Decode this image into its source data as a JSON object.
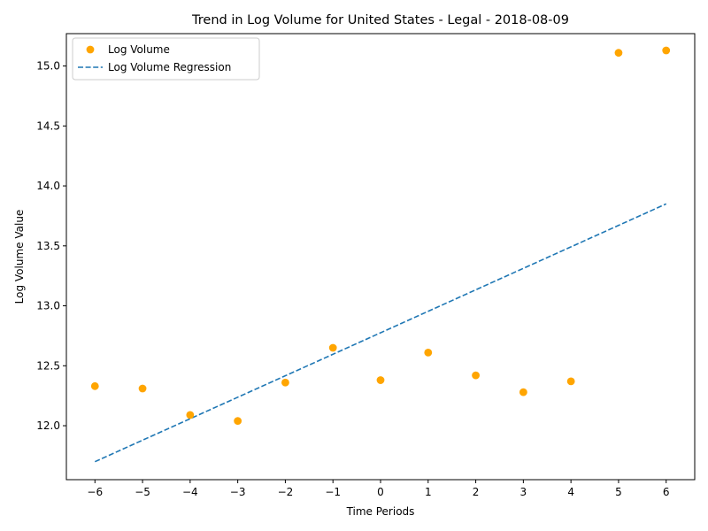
{
  "chart_data": {
    "type": "scatter",
    "title": "Trend in Log Volume for United States - Legal - 2018-08-09",
    "xlabel": "Time Periods",
    "ylabel": "Log Volume Value",
    "xlim": [
      -6.6,
      6.6
    ],
    "ylim": [
      11.55,
      15.27
    ],
    "xticks": [
      -6,
      -5,
      -4,
      -3,
      -2,
      -1,
      0,
      1,
      2,
      3,
      4,
      5,
      6
    ],
    "xtick_labels": [
      "−6",
      "−5",
      "−4",
      "−3",
      "−2",
      "−1",
      "0",
      "1",
      "2",
      "3",
      "4",
      "5",
      "6"
    ],
    "yticks": [
      12.0,
      12.5,
      13.0,
      13.5,
      14.0,
      14.5,
      15.0
    ],
    "ytick_labels": [
      "12.0",
      "12.5",
      "13.0",
      "13.5",
      "14.0",
      "14.5",
      "15.0"
    ],
    "grid": false,
    "legend_position": "upper-left",
    "series": [
      {
        "name": "Log Volume",
        "kind": "scatter",
        "color": "#ffa500",
        "x": [
          -6,
          -5,
          -4,
          -3,
          -2,
          -1,
          0,
          1,
          2,
          3,
          4,
          5,
          6
        ],
        "y": [
          12.33,
          12.31,
          12.09,
          12.04,
          12.36,
          12.65,
          12.38,
          12.61,
          12.42,
          12.28,
          12.37,
          15.11,
          15.13
        ]
      },
      {
        "name": "Log Volume Regression",
        "kind": "line",
        "style": "dashed",
        "color": "#1f77b4",
        "x": [
          -6,
          6
        ],
        "y": [
          11.7,
          13.85
        ]
      }
    ]
  }
}
